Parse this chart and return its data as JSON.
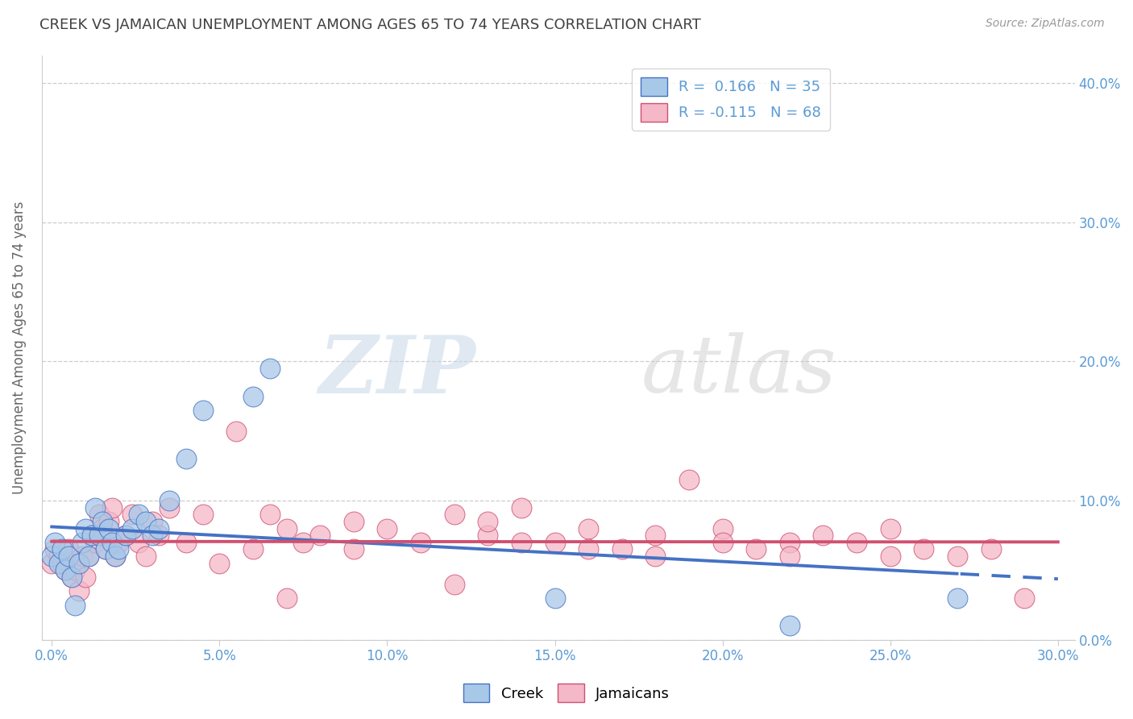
{
  "title": "CREEK VS JAMAICAN UNEMPLOYMENT AMONG AGES 65 TO 74 YEARS CORRELATION CHART",
  "source": "Source: ZipAtlas.com",
  "ylabel": "Unemployment Among Ages 65 to 74 years",
  "xlim": [
    0.0,
    0.3
  ],
  "ylim": [
    0.0,
    0.42
  ],
  "xticks": [
    0.0,
    0.05,
    0.1,
    0.15,
    0.2,
    0.25,
    0.3
  ],
  "yticks": [
    0.0,
    0.1,
    0.2,
    0.3,
    0.4
  ],
  "creek_color": "#a8c8e8",
  "creek_line_color": "#4472c4",
  "creek_edge_color": "#4472c4",
  "jamaican_color": "#f4b8c8",
  "jamaican_line_color": "#d05070",
  "jamaican_edge_color": "#d05070",
  "creek_R": 0.166,
  "creek_N": 35,
  "jamaican_R": -0.115,
  "jamaican_N": 68,
  "creek_x": [
    0.0,
    0.001,
    0.002,
    0.003,
    0.004,
    0.005,
    0.006,
    0.007,
    0.008,
    0.009,
    0.01,
    0.011,
    0.012,
    0.013,
    0.014,
    0.015,
    0.016,
    0.017,
    0.018,
    0.019,
    0.02,
    0.022,
    0.024,
    0.026,
    0.028,
    0.03,
    0.032,
    0.035,
    0.04,
    0.045,
    0.06,
    0.065,
    0.15,
    0.22,
    0.27
  ],
  "creek_y": [
    0.06,
    0.07,
    0.055,
    0.065,
    0.05,
    0.06,
    0.045,
    0.025,
    0.055,
    0.07,
    0.08,
    0.06,
    0.075,
    0.095,
    0.075,
    0.085,
    0.065,
    0.08,
    0.07,
    0.06,
    0.065,
    0.075,
    0.08,
    0.09,
    0.085,
    0.075,
    0.08,
    0.1,
    0.13,
    0.165,
    0.175,
    0.195,
    0.03,
    0.01,
    0.03
  ],
  "jamaican_x": [
    0.0,
    0.001,
    0.002,
    0.003,
    0.004,
    0.005,
    0.006,
    0.007,
    0.008,
    0.009,
    0.01,
    0.011,
    0.012,
    0.013,
    0.014,
    0.015,
    0.016,
    0.017,
    0.018,
    0.019,
    0.02,
    0.022,
    0.024,
    0.026,
    0.028,
    0.03,
    0.032,
    0.035,
    0.04,
    0.045,
    0.05,
    0.055,
    0.06,
    0.065,
    0.07,
    0.075,
    0.08,
    0.09,
    0.1,
    0.11,
    0.12,
    0.13,
    0.14,
    0.15,
    0.16,
    0.17,
    0.18,
    0.19,
    0.2,
    0.21,
    0.22,
    0.23,
    0.24,
    0.25,
    0.26,
    0.27,
    0.28,
    0.13,
    0.16,
    0.09,
    0.12,
    0.07,
    0.14,
    0.2,
    0.22,
    0.29,
    0.25,
    0.18
  ],
  "jamaican_y": [
    0.055,
    0.065,
    0.06,
    0.055,
    0.05,
    0.065,
    0.045,
    0.05,
    0.035,
    0.06,
    0.045,
    0.06,
    0.075,
    0.07,
    0.09,
    0.08,
    0.065,
    0.085,
    0.095,
    0.06,
    0.07,
    0.075,
    0.09,
    0.07,
    0.06,
    0.085,
    0.075,
    0.095,
    0.07,
    0.09,
    0.055,
    0.15,
    0.065,
    0.09,
    0.08,
    0.07,
    0.075,
    0.065,
    0.08,
    0.07,
    0.09,
    0.075,
    0.07,
    0.07,
    0.08,
    0.065,
    0.075,
    0.115,
    0.08,
    0.065,
    0.07,
    0.075,
    0.07,
    0.08,
    0.065,
    0.06,
    0.065,
    0.085,
    0.065,
    0.085,
    0.04,
    0.03,
    0.095,
    0.07,
    0.06,
    0.03,
    0.06,
    0.06
  ],
  "watermark_zip": "ZIP",
  "watermark_atlas": "atlas",
  "background_color": "#ffffff",
  "grid_color": "#cccccc",
  "tick_label_color": "#5b9bd5",
  "title_color": "#404040"
}
